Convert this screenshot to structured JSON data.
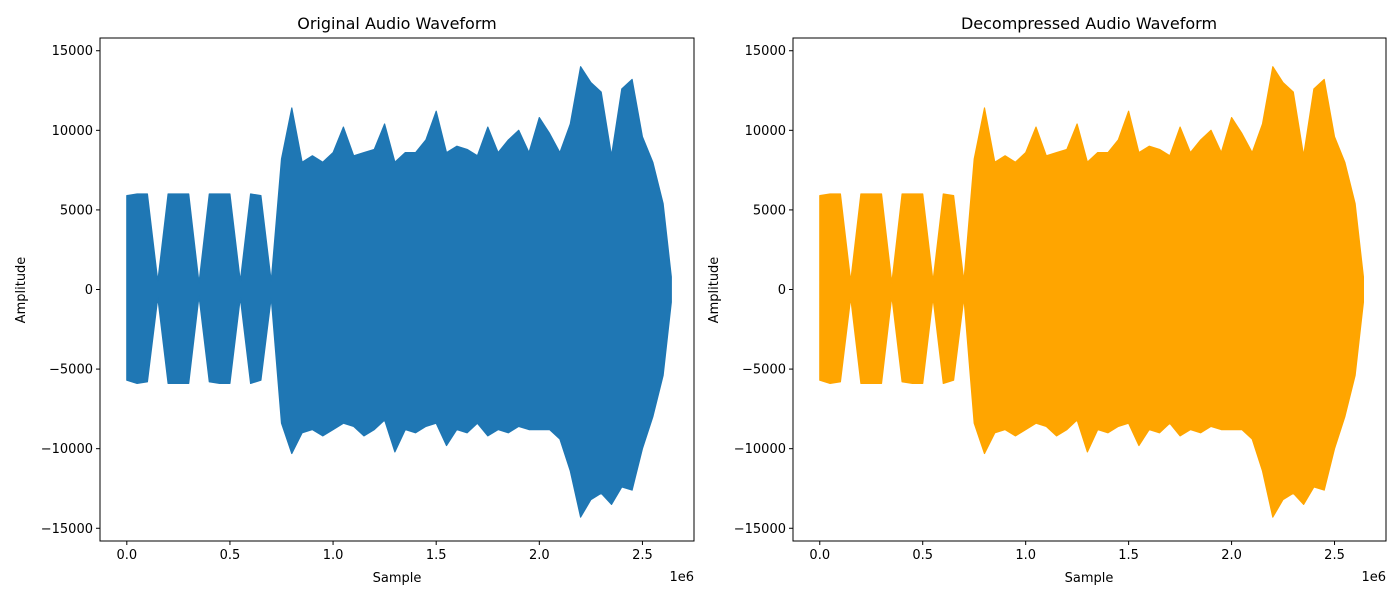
{
  "chart_data": [
    {
      "type": "line",
      "title": "Original Audio Waveform",
      "xlabel": "Sample",
      "ylabel": "Amplitude",
      "x_offset_label": "1e6",
      "xlim": [
        -0.13,
        2.75
      ],
      "ylim": [
        -15800,
        15800
      ],
      "x_ticks": [
        0.0,
        0.5,
        1.0,
        1.5,
        2.0,
        2.5
      ],
      "x_tick_labels": [
        "0.0",
        "0.5",
        "1.0",
        "1.5",
        "2.0",
        "2.5"
      ],
      "y_ticks": [
        -15000,
        -10000,
        -5000,
        0,
        5000,
        10000,
        15000
      ],
      "y_tick_labels": [
        "−15000",
        "−10000",
        "−5000",
        "0",
        "5000",
        "10000",
        "15000"
      ],
      "grid": false,
      "color": "#1f77b4",
      "series": [
        {
          "x": [
            0.0,
            0.05,
            0.1,
            0.15,
            0.2,
            0.25,
            0.3,
            0.35,
            0.4,
            0.45,
            0.5,
            0.55,
            0.6,
            0.65,
            0.7,
            0.75,
            0.8,
            0.85,
            0.9,
            0.95,
            1.0,
            1.05,
            1.1,
            1.15,
            1.2,
            1.25,
            1.3,
            1.35,
            1.4,
            1.45,
            1.5,
            1.55,
            1.6,
            1.65,
            1.7,
            1.75,
            1.8,
            1.85,
            1.9,
            1.95,
            2.0,
            2.05,
            2.1,
            2.15,
            2.2,
            2.25,
            2.3,
            2.35,
            2.4,
            2.45,
            2.5,
            2.55,
            2.6,
            2.64
          ],
          "max": [
            5900,
            6000,
            6000,
            500,
            6000,
            6000,
            6000,
            400,
            6000,
            6000,
            6000,
            500,
            6000,
            5900,
            500,
            8200,
            11400,
            8000,
            8400,
            8000,
            8600,
            10200,
            8400,
            8600,
            8800,
            10400,
            8000,
            8600,
            8600,
            9400,
            11200,
            8600,
            9000,
            8800,
            8400,
            10200,
            8600,
            9400,
            10000,
            8600,
            10800,
            9800,
            8600,
            10400,
            14000,
            13000,
            12400,
            8400,
            12600,
            13200,
            9600,
            8000,
            5400,
            800
          ],
          "min": [
            -5700,
            -5900,
            -5800,
            -500,
            -5900,
            -5900,
            -5900,
            -400,
            -5800,
            -5900,
            -5900,
            -500,
            -5900,
            -5700,
            -500,
            -8400,
            -10300,
            -9000,
            -8800,
            -9200,
            -8800,
            -8400,
            -8600,
            -9200,
            -8800,
            -8200,
            -10200,
            -8800,
            -9000,
            -8600,
            -8400,
            -9800,
            -8800,
            -9000,
            -8400,
            -9200,
            -8800,
            -9000,
            -8600,
            -8800,
            -8800,
            -8800,
            -9400,
            -11400,
            -14300,
            -13200,
            -12800,
            -13500,
            -12400,
            -12600,
            -10000,
            -8000,
            -5400,
            -800
          ]
        }
      ]
    },
    {
      "type": "line",
      "title": "Decompressed Audio Waveform",
      "xlabel": "Sample",
      "ylabel": "Amplitude",
      "x_offset_label": "1e6",
      "xlim": [
        -0.13,
        2.75
      ],
      "ylim": [
        -15800,
        15800
      ],
      "x_ticks": [
        0.0,
        0.5,
        1.0,
        1.5,
        2.0,
        2.5
      ],
      "x_tick_labels": [
        "0.0",
        "0.5",
        "1.0",
        "1.5",
        "2.0",
        "2.5"
      ],
      "y_ticks": [
        -15000,
        -10000,
        -5000,
        0,
        5000,
        10000,
        15000
      ],
      "y_tick_labels": [
        "−15000",
        "−10000",
        "−5000",
        "0",
        "5000",
        "10000",
        "15000"
      ],
      "grid": false,
      "color": "#ffa500",
      "series": [
        {
          "x": [
            0.0,
            0.05,
            0.1,
            0.15,
            0.2,
            0.25,
            0.3,
            0.35,
            0.4,
            0.45,
            0.5,
            0.55,
            0.6,
            0.65,
            0.7,
            0.75,
            0.8,
            0.85,
            0.9,
            0.95,
            1.0,
            1.05,
            1.1,
            1.15,
            1.2,
            1.25,
            1.3,
            1.35,
            1.4,
            1.45,
            1.5,
            1.55,
            1.6,
            1.65,
            1.7,
            1.75,
            1.8,
            1.85,
            1.9,
            1.95,
            2.0,
            2.05,
            2.1,
            2.15,
            2.2,
            2.25,
            2.3,
            2.35,
            2.4,
            2.45,
            2.5,
            2.55,
            2.6,
            2.64
          ],
          "max": [
            5900,
            6000,
            6000,
            500,
            6000,
            6000,
            6000,
            400,
            6000,
            6000,
            6000,
            500,
            6000,
            5900,
            500,
            8200,
            11400,
            8000,
            8400,
            8000,
            8600,
            10200,
            8400,
            8600,
            8800,
            10400,
            8000,
            8600,
            8600,
            9400,
            11200,
            8600,
            9000,
            8800,
            8400,
            10200,
            8600,
            9400,
            10000,
            8600,
            10800,
            9800,
            8600,
            10400,
            14000,
            13000,
            12400,
            8400,
            12600,
            13200,
            9600,
            8000,
            5400,
            800
          ],
          "min": [
            -5700,
            -5900,
            -5800,
            -500,
            -5900,
            -5900,
            -5900,
            -400,
            -5800,
            -5900,
            -5900,
            -500,
            -5900,
            -5700,
            -500,
            -8400,
            -10300,
            -9000,
            -8800,
            -9200,
            -8800,
            -8400,
            -8600,
            -9200,
            -8800,
            -8200,
            -10200,
            -8800,
            -9000,
            -8600,
            -8400,
            -9800,
            -8800,
            -9000,
            -8400,
            -9200,
            -8800,
            -9000,
            -8600,
            -8800,
            -8800,
            -8800,
            -9400,
            -11400,
            -14300,
            -13200,
            -12800,
            -13500,
            -12400,
            -12600,
            -10000,
            -8000,
            -5400,
            -800
          ]
        }
      ]
    }
  ]
}
